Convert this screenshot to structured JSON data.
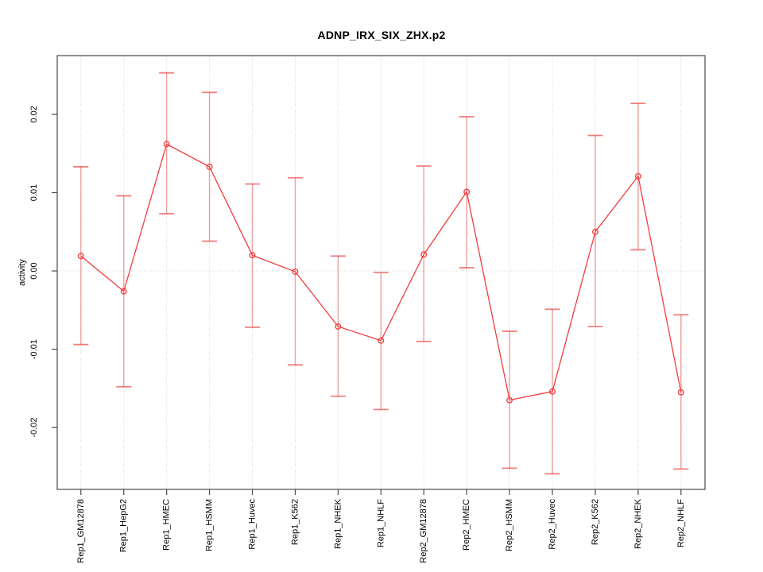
{
  "chart_data": {
    "type": "line",
    "title": "ADNP_IRX_SIX_ZHX.p2",
    "ylabel": "activity",
    "xlabel": "",
    "categories": [
      "Rep1_GM12878",
      "Rep1_HepG2",
      "Rep1_HMEC",
      "Rep1_HSMM",
      "Rep1_Huvec",
      "Rep1_K562",
      "Rep1_NHEK",
      "Rep1_NHLF",
      "Rep2_GM12878",
      "Rep2_HMEC",
      "Rep2_HSMM",
      "Rep2_Huvec",
      "Rep2_K562",
      "Rep2_NHEK",
      "Rep2_NHLF"
    ],
    "series": [
      {
        "name": "activity",
        "values": [
          0.0019,
          -0.0026,
          0.0162,
          0.0133,
          0.002,
          -0.0001,
          -0.0071,
          -0.0089,
          0.0021,
          0.0101,
          -0.0165,
          -0.0154,
          0.005,
          0.0121,
          -0.0155
        ],
        "upper": [
          0.0133,
          0.0096,
          0.0253,
          0.0228,
          0.0111,
          0.0119,
          0.0019,
          -0.0002,
          0.0134,
          0.0197,
          -0.0077,
          -0.0049,
          0.0173,
          0.0214,
          -0.0056
        ],
        "lower": [
          -0.0094,
          -0.0148,
          0.0073,
          0.0038,
          -0.0072,
          -0.012,
          -0.016,
          -0.0177,
          -0.009,
          0.0004,
          -0.0252,
          -0.0259,
          -0.0071,
          0.0027,
          -0.0253
        ]
      }
    ],
    "ytick_labels": [
      "0.02",
      "0.01",
      "0.00",
      "-0.01",
      "-0.02"
    ],
    "ytick_values": [
      0.02,
      0.01,
      0.0,
      -0.01,
      -0.02
    ],
    "ylim": [
      -0.0279,
      0.0275
    ],
    "grid": {
      "vertical_gridlines": true,
      "zero_line_dotted": true
    },
    "legend": "none",
    "marker": "open-circle",
    "error_bars": true,
    "colors": {
      "line": "#f23d3d",
      "whisker": "rgba(230,30,30,0.38)",
      "cap": "rgba(230,30,30,0.56)",
      "grid": "#d9d9d9",
      "axis": "#4a4a4a",
      "text": "#000000"
    }
  }
}
